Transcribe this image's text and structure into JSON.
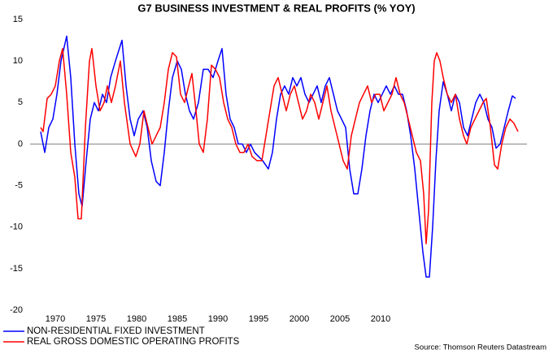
{
  "chart_data": {
    "type": "line",
    "title": "G7 BUSINESS INVESTMENT & REAL PROFITS (% YOY)",
    "source": "Source: Thomson Reuters Datastream",
    "xlim": [
      1966.9,
      2028.0
    ],
    "xticks": [
      1970,
      1975,
      1980,
      1985,
      1990,
      1995,
      2000,
      2005,
      2010
    ],
    "ylim": [
      -20,
      15
    ],
    "yticks": [
      -20,
      -15,
      -10,
      -5,
      0,
      5,
      10,
      15
    ],
    "zero_line": true,
    "grid": false,
    "legend_position": "bottom-left",
    "series": [
      {
        "name": "NON-RESIDENTIAL FIXED INVESTMENT",
        "color": "#0000ff",
        "x": [
          1968.2,
          1968.7,
          1969.2,
          1969.7,
          1970.2,
          1970.7,
          1971.4,
          1971.9,
          1972.4,
          1972.9,
          1973.3,
          1973.8,
          1974.3,
          1974.8,
          1975.3,
          1975.8,
          1976.3,
          1976.8,
          1977.4,
          1978.2,
          1978.7,
          1979.2,
          1979.7,
          1980.2,
          1980.8,
          1981.3,
          1981.8,
          1982.4,
          1982.9,
          1983.4,
          1983.9,
          1984.4,
          1985.0,
          1985.5,
          1986.0,
          1986.5,
          1987.0,
          1987.6,
          1988.2,
          1988.8,
          1989.4,
          1990.0,
          1990.5,
          1991.0,
          1991.5,
          1992.0,
          1992.5,
          1993.0,
          1993.5,
          1994.0,
          1994.5,
          1995.0,
          1995.5,
          1996.2,
          1996.7,
          1997.2,
          1997.7,
          1998.2,
          1998.7,
          1999.2,
          1999.7,
          2000.2,
          2000.7,
          2001.2,
          2001.7,
          2002.2,
          2002.7,
          2003.2,
          2003.7,
          2004.2,
          2004.7,
          2005.2,
          2005.7,
          2006.2,
          2006.7,
          2007.2,
          2007.7,
          2008.2,
          2008.7,
          2009.2,
          2009.7,
          2010.2,
          2010.7,
          2011.2,
          2011.7,
          2012.2,
          2012.7,
          2013.2,
          2013.7,
          2014.2,
          2014.7,
          2015.2,
          2015.6,
          2016.0,
          2016.4,
          2016.8,
          2017.2,
          2017.7,
          2018.2,
          2018.7,
          2019.2,
          2019.7,
          2020.2,
          2020.7,
          2021.2,
          2021.7,
          2022.2,
          2022.7,
          2023.2,
          2023.7,
          2024.2,
          2024.7,
          2025.2,
          2025.7,
          2026.2,
          2026.6
        ],
        "values": [
          1.5,
          -1,
          2,
          3,
          6,
          10,
          13,
          8,
          0,
          -6,
          -7.5,
          -2,
          3,
          5,
          4,
          6,
          5,
          8,
          10,
          12.5,
          7,
          3,
          1,
          3,
          4,
          2,
          -2,
          -4.5,
          -5,
          -1,
          4,
          8,
          10,
          9,
          6,
          4,
          3,
          5,
          9,
          9,
          8,
          10,
          11.5,
          6,
          3,
          2,
          0,
          0,
          -1,
          0,
          -1,
          -1.5,
          -2,
          -3,
          -1,
          3,
          6,
          7,
          6,
          8,
          7,
          8,
          6,
          5,
          6,
          7,
          5,
          7,
          8,
          6,
          4,
          3,
          2,
          -3,
          -6,
          -6,
          -3,
          1,
          4,
          6,
          5,
          6,
          7,
          6,
          7,
          6,
          6,
          4,
          1,
          -3,
          -8,
          -13,
          -16,
          -16,
          -10,
          -2,
          4,
          7.5,
          6,
          4,
          6,
          5,
          2,
          1,
          3,
          5,
          6,
          5,
          3,
          2,
          -0.5,
          0,
          2,
          4,
          5.8,
          5.5
        ]
      },
      {
        "name": "REAL GROSS DOMESTIC OPERATING PROFITS",
        "color": "#ff0000",
        "x": [
          1968.2,
          1968.5,
          1969.0,
          1969.5,
          1970.0,
          1970.5,
          1970.9,
          1971.4,
          1971.9,
          1972.4,
          1972.8,
          1973.2,
          1973.7,
          1974.2,
          1974.5,
          1975.0,
          1975.5,
          1976.0,
          1976.4,
          1976.9,
          1977.4,
          1978.0,
          1978.5,
          1979.2,
          1979.9,
          1980.4,
          1980.9,
          1981.4,
          1981.9,
          1982.4,
          1982.9,
          1983.4,
          1983.9,
          1984.4,
          1984.9,
          1985.4,
          1985.9,
          1986.4,
          1986.8,
          1987.3,
          1987.7,
          1988.2,
          1988.7,
          1989.2,
          1989.7,
          1990.2,
          1990.7,
          1991.2,
          1991.7,
          1992.2,
          1992.7,
          1993.2,
          1993.7,
          1994.2,
          1994.8,
          1995.4,
          1995.9,
          1996.4,
          1996.9,
          1997.4,
          1997.9,
          1998.4,
          1998.9,
          1999.4,
          1999.9,
          2000.4,
          2000.9,
          2001.4,
          2001.9,
          2002.4,
          2002.9,
          2003.4,
          2003.9,
          2004.4,
          2004.9,
          2005.4,
          2005.9,
          2006.4,
          2006.9,
          2007.4,
          2007.9,
          2008.4,
          2008.9,
          2009.4,
          2009.9,
          2010.4,
          2010.9,
          2011.4,
          2011.9,
          2012.4,
          2012.9,
          2013.4,
          2013.9,
          2014.4,
          2014.9,
          2015.3,
          2015.6,
          2015.9,
          2016.3,
          2016.6,
          2016.9,
          2017.3,
          2017.7,
          2018.2,
          2018.7,
          2019.2,
          2019.7,
          2020.2,
          2020.6,
          2021.1,
          2021.6,
          2022.1,
          2022.6,
          2023.0,
          2023.5,
          2024.0,
          2024.4,
          2024.9,
          2025.4,
          2025.9,
          2026.4,
          2026.9
        ],
        "values": [
          2,
          1.5,
          5.5,
          6,
          7,
          10,
          11.5,
          6,
          -1,
          -4,
          -9,
          -9,
          2,
          10,
          11.5,
          7,
          4,
          5,
          7,
          5,
          7,
          10,
          5,
          0,
          -1.5,
          0,
          4,
          2,
          0,
          1,
          2,
          5,
          9,
          11,
          10.5,
          6,
          5,
          7,
          8.5,
          4,
          0,
          -1,
          3,
          9.5,
          9,
          8,
          5,
          3,
          2,
          0,
          -1,
          -1,
          0,
          -1.5,
          -2,
          -2,
          1,
          4,
          7,
          8,
          6,
          4,
          6,
          7,
          5,
          3,
          4,
          6,
          5,
          3,
          5,
          7,
          4,
          2,
          0,
          -2,
          -3,
          1,
          3,
          5,
          6,
          7,
          5,
          6,
          6,
          4,
          5,
          6,
          8,
          6,
          5,
          3,
          1,
          -1,
          -2,
          -6,
          -12,
          -8,
          5,
          10,
          11,
          10,
          8,
          6,
          5,
          6,
          3,
          1,
          0,
          2,
          3,
          4,
          5,
          5.5,
          2,
          -2.5,
          -3,
          0,
          2,
          3,
          2.5,
          1.5
        ]
      }
    ]
  }
}
